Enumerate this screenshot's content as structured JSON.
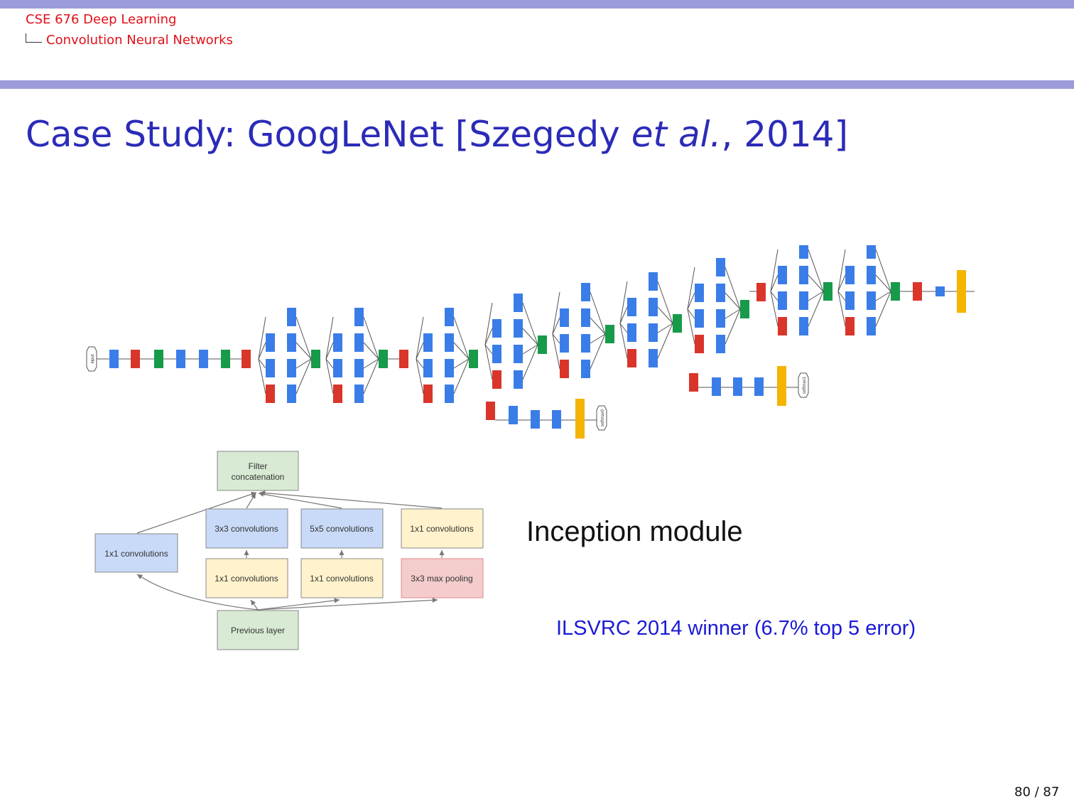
{
  "header": {
    "course": "CSE 676 Deep Learning",
    "section": "Convolution Neural Networks"
  },
  "slide": {
    "title_main": "Case Study: GoogLeNet [Szegedy ",
    "title_italic": "et al.",
    "title_end": ", 2014]",
    "caption": "Inception module",
    "note": "ILSVRC 2014 winner (6.7% top 5 error)",
    "page": "80 / 87"
  },
  "network": {
    "colors": {
      "conv": "#3b7de8",
      "pool": "#d9352b",
      "concat": "#179a4a",
      "softmax": "#f4b400"
    },
    "labels": {
      "input": "input",
      "softmax0": "softmax0",
      "softmax1": "softmax1",
      "softmax2": "softmax2"
    }
  },
  "inception": {
    "filter_concat": "Filter concatenation",
    "branch_1x1": "1x1 convolutions",
    "conv3x3": "3x3 convolutions",
    "conv5x5": "5x5 convolutions",
    "conv1x1_top": "1x1 convolutions",
    "reduce_3x3": "1x1 convolutions",
    "reduce_5x5": "1x1 convolutions",
    "maxpool": "3x3 max pooling",
    "previous": "Previous layer"
  }
}
